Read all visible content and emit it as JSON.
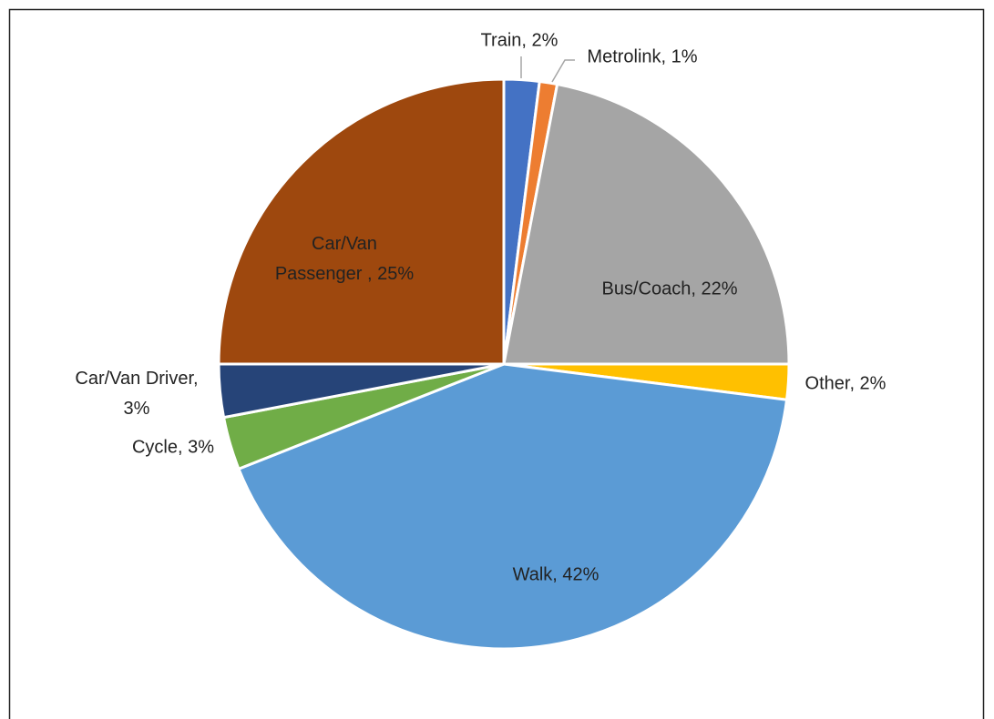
{
  "chart_data": {
    "type": "pie",
    "values": [
      2,
      1,
      22,
      2,
      42,
      3,
      3,
      25
    ],
    "value_labels": [
      "Train, 2%",
      "Metrolink, 1%",
      "Bus/Coach, 22%",
      "Other, 2%",
      "Walk, 42%",
      "Cycle, 3%",
      "Car/Van Driver, 3%",
      "Car/Van Passenger , 25%"
    ],
    "colors": [
      "#4472c4",
      "#ed7d31",
      "#a5a5a5",
      "#ffc000",
      "#5b9bd5",
      "#70ad47",
      "#264478",
      "#9e480e"
    ]
  }
}
